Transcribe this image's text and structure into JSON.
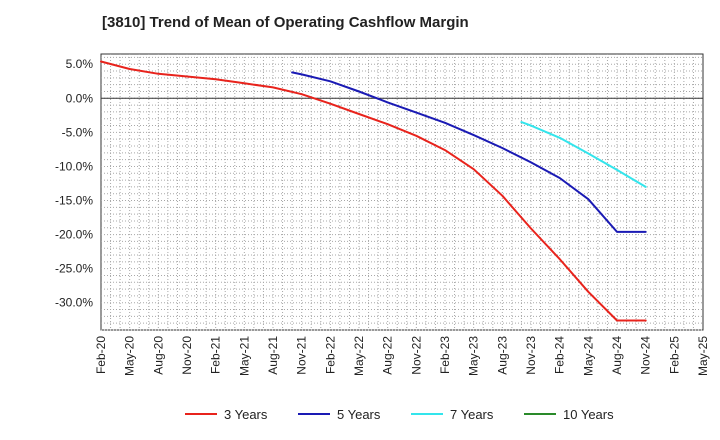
{
  "chart_data": {
    "type": "line",
    "title": "[3810]  Trend of Mean of Operating Cashflow Margin",
    "xlabel": "",
    "ylabel": "",
    "ylim": [
      -34.0,
      6.5
    ],
    "y_ticks": [
      5.0,
      0.0,
      -5.0,
      -10.0,
      -15.0,
      -20.0,
      -25.0,
      -30.0
    ],
    "y_tick_labels": [
      "5.0%",
      "0.0%",
      "-5.0%",
      "-10.0%",
      "-15.0%",
      "-20.0%",
      "-25.0%",
      "-30.0%"
    ],
    "x_tick_labels": [
      "Feb-20",
      "May-20",
      "Aug-20",
      "Nov-20",
      "Feb-21",
      "May-21",
      "Aug-21",
      "Nov-21",
      "Feb-22",
      "May-22",
      "Aug-22",
      "Nov-22",
      "Feb-23",
      "May-23",
      "Aug-23",
      "Nov-23",
      "Feb-24",
      "May-24",
      "Aug-24",
      "Nov-24",
      "Feb-25",
      "May-25"
    ],
    "x_range_months": [
      0,
      63
    ],
    "grid": true,
    "legend_position": "bottom",
    "series": [
      {
        "name": "3 Years",
        "color": "#e8231c",
        "x": [
          0,
          3,
          6,
          9,
          12,
          15,
          18,
          21,
          24,
          27,
          30,
          33,
          36,
          39,
          42,
          45,
          48,
          51,
          54,
          57
        ],
        "y": [
          5.4,
          4.3,
          3.6,
          3.2,
          2.8,
          2.2,
          1.6,
          0.6,
          -0.8,
          -2.3,
          -3.8,
          -5.5,
          -7.6,
          -10.4,
          -14.3,
          -19.1,
          -23.6,
          -28.4,
          -32.6,
          -32.6
        ]
      },
      {
        "name": "5 Years",
        "color": "#1a1ab4",
        "x": [
          20,
          21,
          24,
          27,
          30,
          33,
          36,
          39,
          42,
          45,
          48,
          51,
          54,
          57
        ],
        "y": [
          3.8,
          3.5,
          2.5,
          1.0,
          -0.6,
          -2.1,
          -3.6,
          -5.4,
          -7.3,
          -9.4,
          -11.7,
          -14.8,
          -19.6,
          -19.6
        ]
      },
      {
        "name": "7 Years",
        "color": "#33e5ec",
        "x": [
          44,
          45,
          48,
          51,
          54,
          57
        ],
        "y": [
          -3.5,
          -4.0,
          -5.8,
          -8.1,
          -10.5,
          -13.0
        ]
      },
      {
        "name": "10 Years",
        "color": "#2a8a2a",
        "x": [],
        "y": []
      }
    ]
  }
}
